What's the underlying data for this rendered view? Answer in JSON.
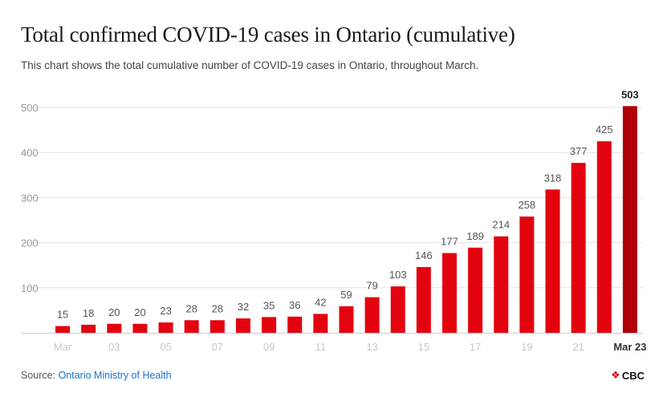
{
  "title": "Total confirmed COVID-19 cases in Ontario (cumulative)",
  "subtitle": "This chart shows the total cumulative number of COVID-19 cases in Ontario, throughout March.",
  "footer": {
    "source_prefix": "Source: ",
    "source_name": "Ontario Ministry of Health"
  },
  "brand": {
    "mark": "❖",
    "name": "CBC"
  },
  "colors": {
    "bar": "#e3030f",
    "bar_highlight": "#b00009",
    "grid": "#e2e2e2",
    "tick": "#9a9a9a",
    "tick_dim": "#c8c8c8"
  },
  "chart_data": {
    "type": "bar",
    "title": "Total confirmed COVID-19 cases in Ontario (cumulative)",
    "xlabel": "",
    "ylabel": "",
    "ylim": [
      0,
      500
    ],
    "yticks": [
      100,
      200,
      300,
      400,
      500
    ],
    "grid": true,
    "categories": [
      "Mar 1",
      "Mar 2",
      "Mar 3",
      "Mar 4",
      "Mar 5",
      "Mar 6",
      "Mar 7",
      "Mar 8",
      "Mar 9",
      "Mar 10",
      "Mar 11",
      "Mar 12",
      "Mar 13",
      "Mar 14",
      "Mar 15",
      "Mar 16",
      "Mar 17",
      "Mar 18",
      "Mar 19",
      "Mar 20",
      "Mar 21",
      "Mar 22",
      "Mar 23"
    ],
    "values": [
      15,
      18,
      20,
      20,
      23,
      28,
      28,
      32,
      35,
      36,
      42,
      59,
      79,
      103,
      146,
      177,
      189,
      214,
      258,
      318,
      377,
      425,
      503
    ],
    "xtick_labels": [
      {
        "index": 0,
        "label": "Mar"
      },
      {
        "index": 2,
        "label": "03"
      },
      {
        "index": 4,
        "label": "05"
      },
      {
        "index": 6,
        "label": "07"
      },
      {
        "index": 8,
        "label": "09"
      },
      {
        "index": 10,
        "label": "11"
      },
      {
        "index": 12,
        "label": "13"
      },
      {
        "index": 14,
        "label": "15"
      },
      {
        "index": 16,
        "label": "17"
      },
      {
        "index": 18,
        "label": "19"
      },
      {
        "index": 20,
        "label": "21"
      },
      {
        "index": 22,
        "label": "Mar 23"
      }
    ],
    "highlight_index": 22
  }
}
